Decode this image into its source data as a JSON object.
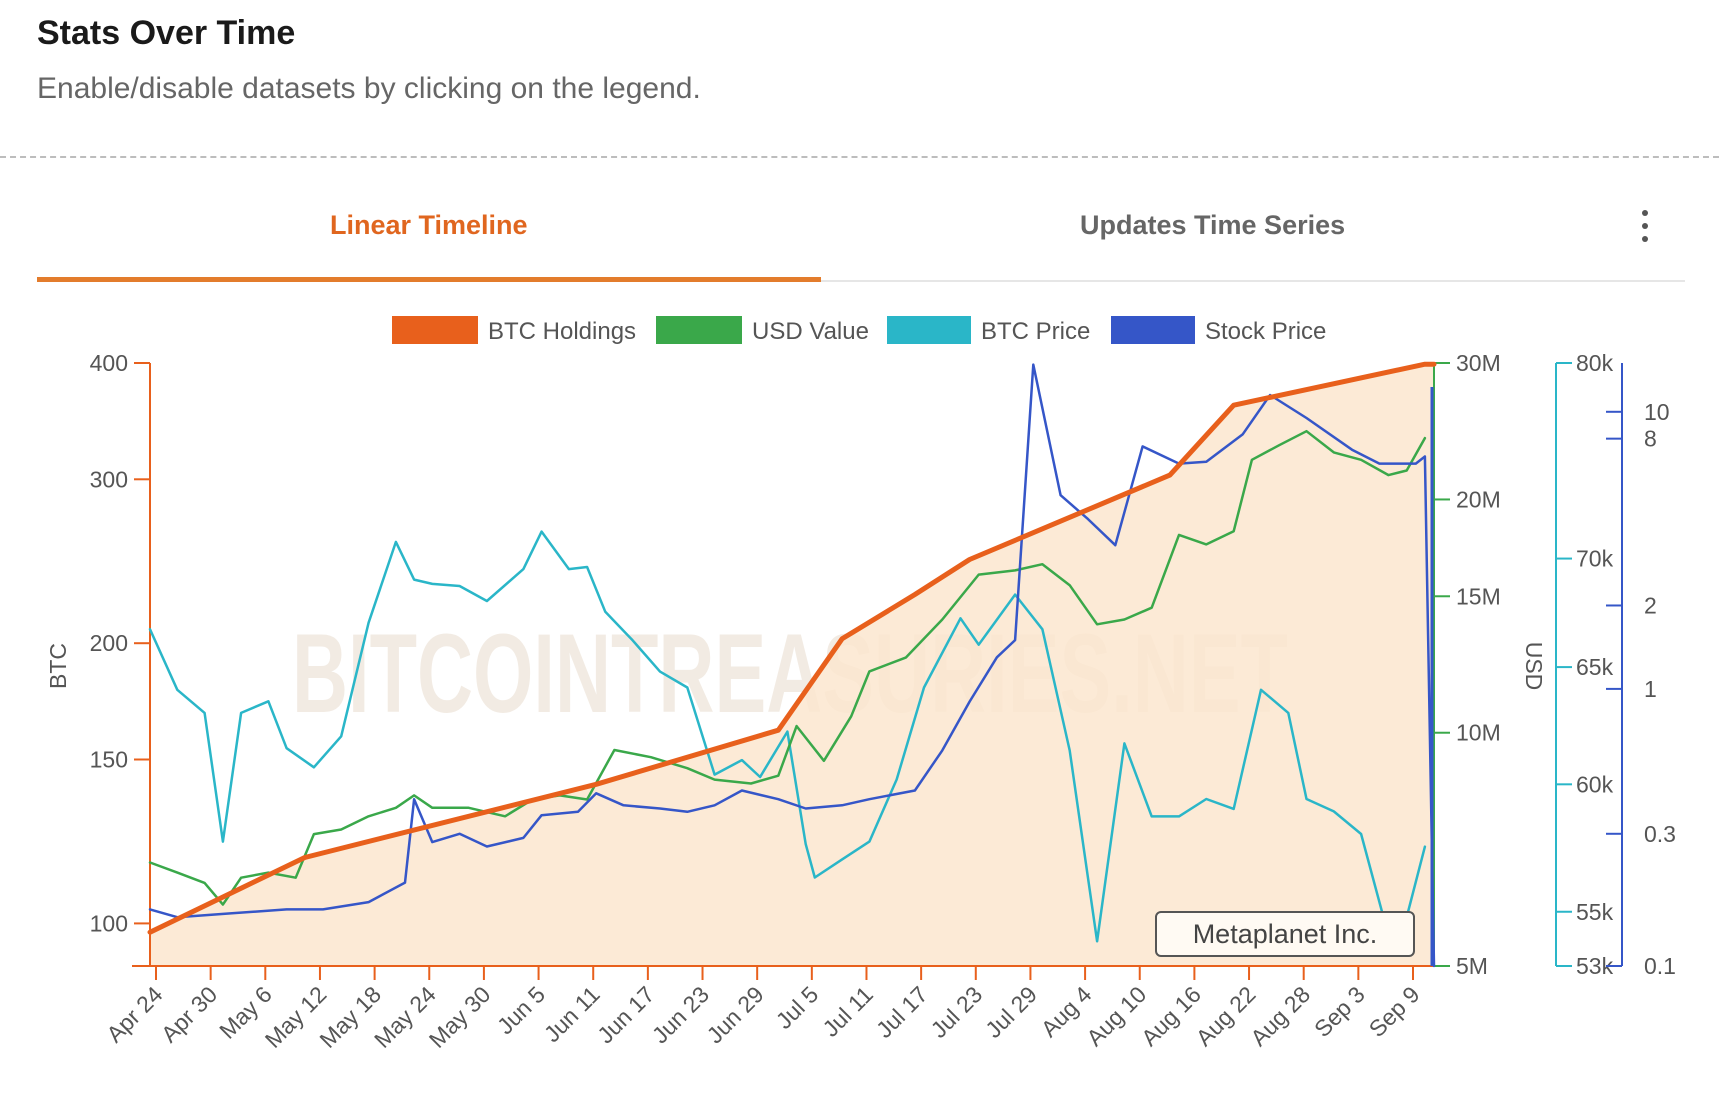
{
  "header": {
    "title": "Stats Over Time",
    "subtitle": "Enable/disable datasets by clicking on the legend."
  },
  "tabs": [
    {
      "label": "Linear Timeline",
      "active": true
    },
    {
      "label": "Updates Time Series",
      "active": false
    }
  ],
  "menu_icon": "vertical-ellipsis-icon",
  "colors": {
    "accent": "#e0661f",
    "btc_holdings": "#e8601c",
    "usd_value": "#3aa84a",
    "btc_price": "#2ab6c8",
    "stock_price": "#3556c8",
    "area_fill": "#fbe6cf"
  },
  "chart_data": {
    "type": "line",
    "watermark": "BITCOINTREASURIES.NET",
    "annotation": "Metaplanet Inc.",
    "legend_position": "top",
    "grid": false,
    "x_labels": [
      "Apr 24",
      "Apr 30",
      "May 6",
      "May 12",
      "May 18",
      "May 24",
      "May 30",
      "Jun 5",
      "Jun 11",
      "Jun 17",
      "Jun 23",
      "Jun 29",
      "Jul 5",
      "Jul 11",
      "Jul 17",
      "Jul 23",
      "Jul 29",
      "Aug 4",
      "Aug 10",
      "Aug 16",
      "Aug 22",
      "Aug 28",
      "Sep 3",
      "Sep 9"
    ],
    "axes": {
      "btc": {
        "label": "BTC",
        "scale": "log",
        "range": [
          90,
          400
        ],
        "ticks": [
          100,
          150,
          200,
          300,
          400
        ]
      },
      "usd": {
        "label": "USD",
        "scale": "log",
        "range": [
          5000000,
          30000000
        ],
        "ticks": [
          "5M",
          "10M",
          "15M",
          "20M",
          "30M"
        ]
      },
      "btc_price": {
        "label": "",
        "scale": "log",
        "range": [
          53000,
          80000
        ],
        "ticks": [
          "53k",
          "55k",
          "60k",
          "65k",
          "70k",
          "80k"
        ]
      },
      "stock_price": {
        "label": "",
        "scale": "log",
        "range": [
          0.1,
          15
        ],
        "ticks": [
          "0.1",
          "0.3",
          "1",
          "2",
          "8",
          "10"
        ]
      }
    },
    "series": [
      {
        "name": "BTC Holdings",
        "axis": "btc",
        "fill": true,
        "points": [
          [
            "2024-04-23",
            97.85
          ],
          [
            "2024-05-10",
            117.72
          ],
          [
            "2024-06-11",
            141.07
          ],
          [
            "2024-07-01",
            161.27
          ],
          [
            "2024-07-08",
            202.2
          ],
          [
            "2024-07-16",
            225.6
          ],
          [
            "2024-07-22",
            245.99
          ],
          [
            "2024-08-13",
            303.1
          ],
          [
            "2024-08-20",
            360.37
          ],
          [
            "2024-09-10",
            398.83
          ],
          [
            "2024-09-11",
            398.83
          ]
        ]
      },
      {
        "name": "USD Value",
        "axis": "usd",
        "points": [
          [
            "2024-04-23",
            6800000.0
          ],
          [
            "2024-04-26",
            6600000.0
          ],
          [
            "2024-04-29",
            6400000.0
          ],
          [
            "2024-05-01",
            6000000.0
          ],
          [
            "2024-05-03",
            6500000.0
          ],
          [
            "2024-05-06",
            6600000.0
          ],
          [
            "2024-05-09",
            6500000.0
          ],
          [
            "2024-05-11",
            7400000.0
          ],
          [
            "2024-05-14",
            7500000.0
          ],
          [
            "2024-05-17",
            7800000.0
          ],
          [
            "2024-05-20",
            8000000.0
          ],
          [
            "2024-05-22",
            8300000.0
          ],
          [
            "2024-05-24",
            8000000.0
          ],
          [
            "2024-05-28",
            8000000.0
          ],
          [
            "2024-06-01",
            7800000.0
          ],
          [
            "2024-06-04",
            8200000.0
          ],
          [
            "2024-06-07",
            8300000.0
          ],
          [
            "2024-06-10",
            8200000.0
          ],
          [
            "2024-06-13",
            9500000.0
          ],
          [
            "2024-06-17",
            9300000.0
          ],
          [
            "2024-06-21",
            9000000.0
          ],
          [
            "2024-06-24",
            8700000.0
          ],
          [
            "2024-06-28",
            8600000.0
          ],
          [
            "2024-07-01",
            8800000.0
          ],
          [
            "2024-07-03",
            10200000.0
          ],
          [
            "2024-07-06",
            9200000.0
          ],
          [
            "2024-07-09",
            10500000.0
          ],
          [
            "2024-07-11",
            12000000.0
          ],
          [
            "2024-07-15",
            12500000.0
          ],
          [
            "2024-07-19",
            14000000.0
          ],
          [
            "2024-07-23",
            16000000.0
          ],
          [
            "2024-07-27",
            16200000.0
          ],
          [
            "2024-07-30",
            16500000.0
          ],
          [
            "2024-08-02",
            15500000.0
          ],
          [
            "2024-08-05",
            13800000.0
          ],
          [
            "2024-08-08",
            14000000.0
          ],
          [
            "2024-08-11",
            14500000.0
          ],
          [
            "2024-08-14",
            18000000.0
          ],
          [
            "2024-08-17",
            17500000.0
          ],
          [
            "2024-08-20",
            18200000.0
          ],
          [
            "2024-08-22",
            22500000.0
          ],
          [
            "2024-08-25",
            23500000.0
          ],
          [
            "2024-08-28",
            24500000.0
          ],
          [
            "2024-08-31",
            23000000.0
          ],
          [
            "2024-09-03",
            22500000.0
          ],
          [
            "2024-09-06",
            21500000.0
          ],
          [
            "2024-09-08",
            21800000.0
          ],
          [
            "2024-09-10",
            24000000.0
          ]
        ]
      },
      {
        "name": "BTC Price",
        "axis": "btc_price",
        "points": [
          [
            "2024-04-23",
            66700
          ],
          [
            "2024-04-26",
            64000
          ],
          [
            "2024-04-29",
            63000
          ],
          [
            "2024-05-01",
            57700
          ],
          [
            "2024-05-03",
            63000
          ],
          [
            "2024-05-06",
            63500
          ],
          [
            "2024-05-08",
            61500
          ],
          [
            "2024-05-11",
            60700
          ],
          [
            "2024-05-14",
            62000
          ],
          [
            "2024-05-17",
            67000
          ],
          [
            "2024-05-20",
            70800
          ],
          [
            "2024-05-22",
            69000
          ],
          [
            "2024-05-24",
            68800
          ],
          [
            "2024-05-27",
            68700
          ],
          [
            "2024-05-30",
            68000
          ],
          [
            "2024-06-03",
            69500
          ],
          [
            "2024-06-05",
            71300
          ],
          [
            "2024-06-08",
            69500
          ],
          [
            "2024-06-10",
            69600
          ],
          [
            "2024-06-12",
            67500
          ],
          [
            "2024-06-15",
            66200
          ],
          [
            "2024-06-18",
            64800
          ],
          [
            "2024-06-21",
            64100
          ],
          [
            "2024-06-24",
            60400
          ],
          [
            "2024-06-27",
            61000
          ],
          [
            "2024-06-29",
            60300
          ],
          [
            "2024-07-02",
            62200
          ],
          [
            "2024-07-04",
            57600
          ],
          [
            "2024-07-05",
            56300
          ],
          [
            "2024-07-08",
            57000
          ],
          [
            "2024-07-11",
            57700
          ],
          [
            "2024-07-14",
            60200
          ],
          [
            "2024-07-17",
            64100
          ],
          [
            "2024-07-21",
            67200
          ],
          [
            "2024-07-23",
            66000
          ],
          [
            "2024-07-27",
            68300
          ],
          [
            "2024-07-30",
            66700
          ],
          [
            "2024-08-02",
            61400
          ],
          [
            "2024-08-05",
            53900
          ],
          [
            "2024-08-08",
            61700
          ],
          [
            "2024-08-11",
            58700
          ],
          [
            "2024-08-14",
            58700
          ],
          [
            "2024-08-17",
            59400
          ],
          [
            "2024-08-20",
            59000
          ],
          [
            "2024-08-23",
            64000
          ],
          [
            "2024-08-26",
            63000
          ],
          [
            "2024-08-28",
            59400
          ],
          [
            "2024-08-31",
            58900
          ],
          [
            "2024-09-03",
            58000
          ],
          [
            "2024-09-06",
            54100
          ],
          [
            "2024-09-08",
            54800
          ],
          [
            "2024-09-10",
            57500
          ]
        ]
      },
      {
        "name": "Stock Price",
        "axis": "stock_price",
        "points": [
          [
            "2024-04-23",
            0.16
          ],
          [
            "2024-04-26",
            0.15
          ],
          [
            "2024-05-02",
            0.155
          ],
          [
            "2024-05-08",
            0.16
          ],
          [
            "2024-05-12",
            0.16
          ],
          [
            "2024-05-17",
            0.17
          ],
          [
            "2024-05-21",
            0.2
          ],
          [
            "2024-05-22",
            0.4
          ],
          [
            "2024-05-24",
            0.28
          ],
          [
            "2024-05-27",
            0.3
          ],
          [
            "2024-05-30",
            0.27
          ],
          [
            "2024-06-03",
            0.29
          ],
          [
            "2024-06-05",
            0.35
          ],
          [
            "2024-06-09",
            0.36
          ],
          [
            "2024-06-11",
            0.42
          ],
          [
            "2024-06-14",
            0.38
          ],
          [
            "2024-06-18",
            0.37
          ],
          [
            "2024-06-21",
            0.36
          ],
          [
            "2024-06-24",
            0.38
          ],
          [
            "2024-06-27",
            0.43
          ],
          [
            "2024-07-01",
            0.4
          ],
          [
            "2024-07-04",
            0.37
          ],
          [
            "2024-07-08",
            0.38
          ],
          [
            "2024-07-11",
            0.4
          ],
          [
            "2024-07-16",
            0.43
          ],
          [
            "2024-07-19",
            0.6
          ],
          [
            "2024-07-22",
            0.9
          ],
          [
            "2024-07-25",
            1.3
          ],
          [
            "2024-07-27",
            1.5
          ],
          [
            "2024-07-29",
            14.8
          ],
          [
            "2024-08-01",
            5.0
          ],
          [
            "2024-08-04",
            4.1
          ],
          [
            "2024-08-07",
            3.3
          ],
          [
            "2024-08-10",
            7.5
          ],
          [
            "2024-08-14",
            6.5
          ],
          [
            "2024-08-17",
            6.6
          ],
          [
            "2024-08-21",
            8.3
          ],
          [
            "2024-08-24",
            11.5
          ],
          [
            "2024-08-28",
            9.5
          ],
          [
            "2024-09-02",
            7.3
          ],
          [
            "2024-09-05",
            6.5
          ],
          [
            "2024-09-09",
            6.5
          ],
          [
            "2024-09-10",
            6.9
          ],
          [
            "2024-09-11",
            0.1
          ]
        ]
      }
    ]
  }
}
